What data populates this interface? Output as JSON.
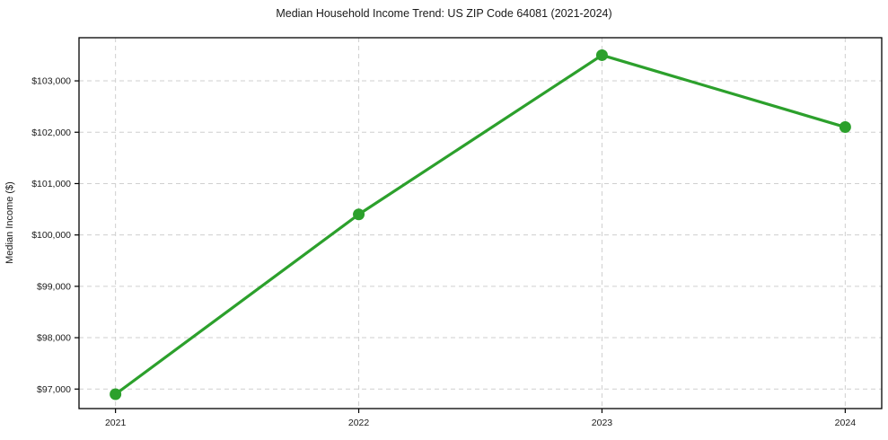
{
  "chart_data": {
    "type": "line",
    "title": "Median Household Income Trend: US ZIP Code 64081 (2021-2024)",
    "xlabel": "",
    "ylabel": "Median Income ($)",
    "x": [
      2021,
      2022,
      2023,
      2024
    ],
    "x_tick_labels": [
      "2021",
      "2022",
      "2023",
      "2024"
    ],
    "series": [
      {
        "name": "Median Household Income",
        "values": [
          96900,
          100400,
          103500,
          102100
        ],
        "color": "#2ca02c",
        "marker": "circle"
      }
    ],
    "y_ticks": [
      97000,
      98000,
      99000,
      100000,
      101000,
      102000,
      103000
    ],
    "y_tick_labels": [
      "$97,000",
      "$98,000",
      "$99,000",
      "$100,000",
      "$101,000",
      "$102,000",
      "$103,000"
    ],
    "xlim": [
      2020.85,
      2024.15
    ],
    "ylim": [
      96620,
      103840
    ],
    "grid": true,
    "grid_style": "dashed",
    "grid_color": "#cfcfcf",
    "background": "#ffffff",
    "frame_color": "#000000",
    "legend": "none"
  }
}
